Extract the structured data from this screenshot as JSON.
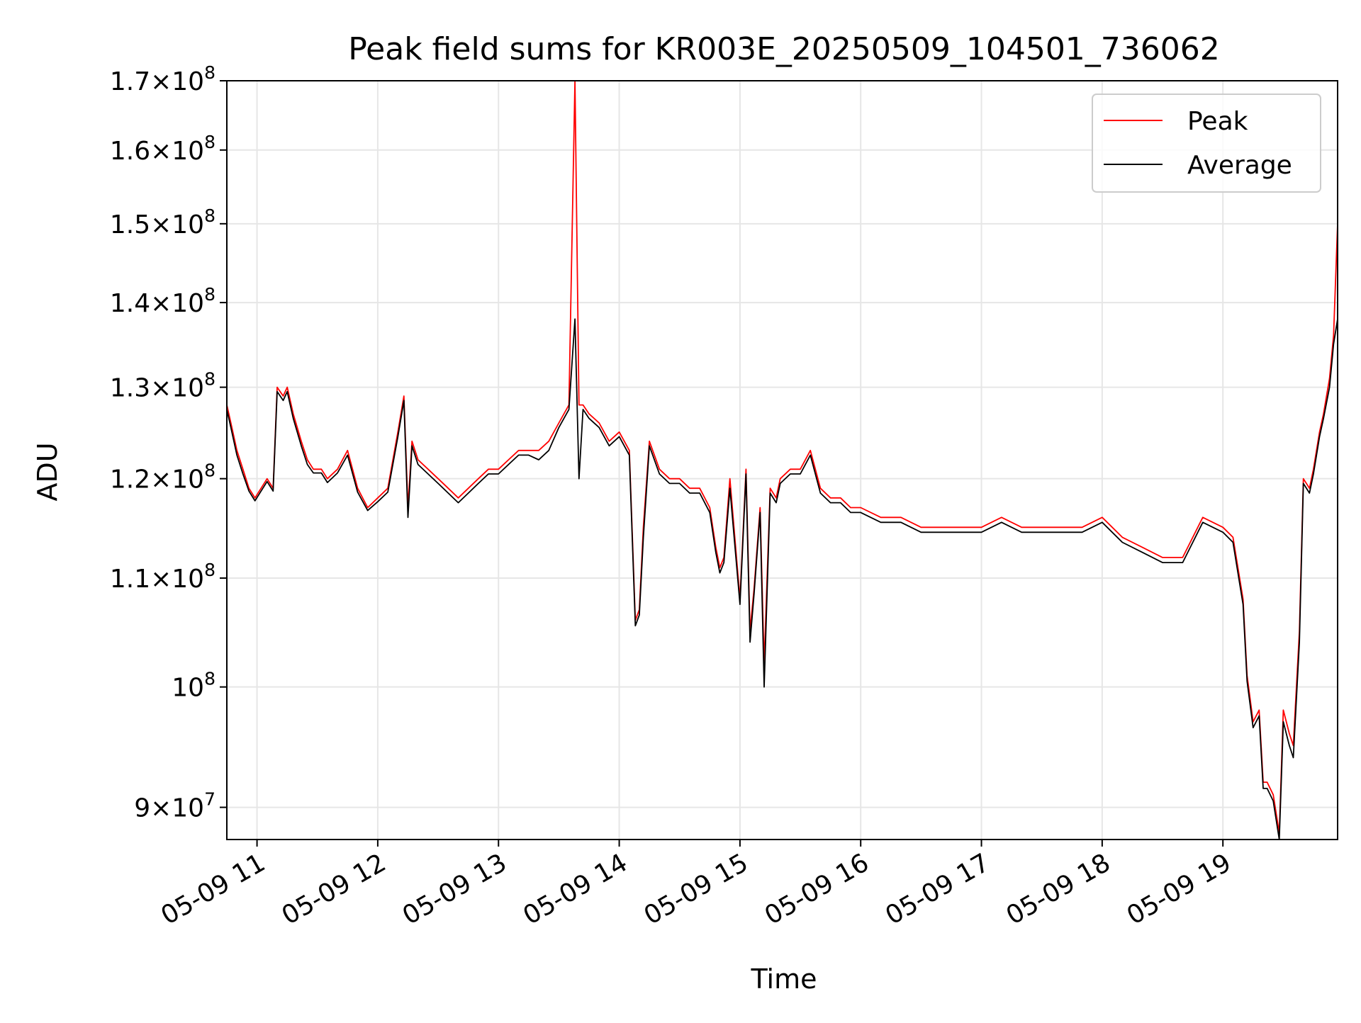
{
  "chart_data": {
    "type": "line",
    "title": "Peak field sums for KR003E_20250509_104501_736062",
    "xlabel": "Time",
    "ylabel": "ADU",
    "y_scale": "log",
    "x_date": "2025-05-09",
    "xlim": [
      "2025-05-09T10:45",
      "2025-05-09T19:57"
    ],
    "ylim": [
      87500000,
      170000000
    ],
    "grid": true,
    "legend_position": "upper right",
    "x_ticks": [
      {
        "t": "2025-05-09T11:00",
        "label": "05-09 11"
      },
      {
        "t": "2025-05-09T12:00",
        "label": "05-09 12"
      },
      {
        "t": "2025-05-09T13:00",
        "label": "05-09 13"
      },
      {
        "t": "2025-05-09T14:00",
        "label": "05-09 14"
      },
      {
        "t": "2025-05-09T15:00",
        "label": "05-09 15"
      },
      {
        "t": "2025-05-09T16:00",
        "label": "05-09 16"
      },
      {
        "t": "2025-05-09T17:00",
        "label": "05-09 17"
      },
      {
        "t": "2025-05-09T18:00",
        "label": "05-09 18"
      },
      {
        "t": "2025-05-09T19:00",
        "label": "05-09 19"
      }
    ],
    "y_ticks": [
      {
        "value": 90000000,
        "mant": "9",
        "exp": "7"
      },
      {
        "value": 100000000,
        "mant": "",
        "exp": "8"
      },
      {
        "value": 110000000,
        "mant": "1.1",
        "exp": "8"
      },
      {
        "value": 120000000,
        "mant": "1.2",
        "exp": "8"
      },
      {
        "value": 130000000,
        "mant": "1.3",
        "exp": "8"
      },
      {
        "value": 140000000,
        "mant": "1.4",
        "exp": "8"
      },
      {
        "value": 150000000,
        "mant": "1.5",
        "exp": "8"
      },
      {
        "value": 160000000,
        "mant": "1.6",
        "exp": "8"
      },
      {
        "value": 170000000,
        "mant": "1.7",
        "exp": "8"
      }
    ],
    "series": [
      {
        "name": "Peak",
        "color": "#ff0000",
        "x": [
          "10:45",
          "10:47",
          "10:50",
          "10:53",
          "10:56",
          "10:59",
          "11:02",
          "11:05",
          "11:08",
          "11:10",
          "11:13",
          "11:15",
          "11:18",
          "11:22",
          "11:25",
          "11:28",
          "11:32",
          "11:35",
          "11:40",
          "11:45",
          "11:50",
          "11:55",
          "12:00",
          "12:05",
          "12:10",
          "12:13",
          "12:15",
          "12:17",
          "12:20",
          "12:25",
          "12:30",
          "12:35",
          "12:40",
          "12:45",
          "12:50",
          "12:55",
          "13:00",
          "13:05",
          "13:10",
          "13:15",
          "13:20",
          "13:25",
          "13:30",
          "13:35",
          "13:38",
          "13:40",
          "13:42",
          "13:45",
          "13:50",
          "13:55",
          "14:00",
          "14:05",
          "14:08",
          "14:10",
          "14:12",
          "14:15",
          "14:20",
          "14:25",
          "14:30",
          "14:35",
          "14:40",
          "14:45",
          "14:48",
          "14:50",
          "14:52",
          "14:55",
          "15:00",
          "15:03",
          "15:05",
          "15:07",
          "15:10",
          "15:12",
          "15:15",
          "15:18",
          "15:20",
          "15:25",
          "15:30",
          "15:35",
          "15:40",
          "15:45",
          "15:50",
          "15:55",
          "16:00",
          "16:10",
          "16:20",
          "16:30",
          "16:40",
          "16:50",
          "17:00",
          "17:10",
          "17:20",
          "17:30",
          "17:40",
          "17:50",
          "18:00",
          "18:10",
          "18:20",
          "18:30",
          "18:40",
          "18:50",
          "19:00",
          "19:05",
          "19:10",
          "19:12",
          "19:15",
          "19:18",
          "19:20",
          "19:22",
          "19:25",
          "19:28",
          "19:30",
          "19:33",
          "19:35",
          "19:38",
          "19:40",
          "19:43",
          "19:45",
          "19:48",
          "19:50",
          "19:53",
          "19:55",
          "19:57"
        ],
        "values": [
          128000000,
          126000000,
          123000000,
          121000000,
          119000000,
          118000000,
          119000000,
          120000000,
          119000000,
          130000000,
          129000000,
          130000000,
          127000000,
          124000000,
          122000000,
          121000000,
          121000000,
          120000000,
          121000000,
          123000000,
          119000000,
          117000000,
          118000000,
          119000000,
          125000000,
          129000000,
          117000000,
          124000000,
          122000000,
          121000000,
          120000000,
          119000000,
          118000000,
          119000000,
          120000000,
          121000000,
          121000000,
          122000000,
          123000000,
          123000000,
          123000000,
          124000000,
          126000000,
          128000000,
          170000000,
          128000000,
          128000000,
          127000000,
          126000000,
          124000000,
          125000000,
          123000000,
          106000000,
          107000000,
          115000000,
          124000000,
          121000000,
          120000000,
          120000000,
          119000000,
          119000000,
          117000000,
          113000000,
          111000000,
          112000000,
          120000000,
          108000000,
          121000000,
          105000000,
          109000000,
          117000000,
          102000000,
          119000000,
          118000000,
          120000000,
          121000000,
          121000000,
          123000000,
          119000000,
          118000000,
          118000000,
          117000000,
          117000000,
          116000000,
          116000000,
          115000000,
          115000000,
          115000000,
          115000000,
          116000000,
          115000000,
          115000000,
          115000000,
          115000000,
          116000000,
          114000000,
          113000000,
          112000000,
          112000000,
          116000000,
          115000000,
          114000000,
          108000000,
          101000000,
          97000000,
          98000000,
          92000000,
          92000000,
          91000000,
          88000000,
          98000000,
          96000000,
          95000000,
          105000000,
          120000000,
          119000000,
          121000000,
          125000000,
          127000000,
          131000000,
          136000000,
          150000000
        ]
      },
      {
        "name": "Average",
        "color": "#000000",
        "x": [
          "10:45",
          "10:47",
          "10:50",
          "10:53",
          "10:56",
          "10:59",
          "11:02",
          "11:05",
          "11:08",
          "11:10",
          "11:13",
          "11:15",
          "11:18",
          "11:22",
          "11:25",
          "11:28",
          "11:32",
          "11:35",
          "11:40",
          "11:45",
          "11:50",
          "11:55",
          "12:00",
          "12:05",
          "12:10",
          "12:13",
          "12:15",
          "12:17",
          "12:20",
          "12:25",
          "12:30",
          "12:35",
          "12:40",
          "12:45",
          "12:50",
          "12:55",
          "13:00",
          "13:05",
          "13:10",
          "13:15",
          "13:20",
          "13:25",
          "13:30",
          "13:35",
          "13:38",
          "13:40",
          "13:42",
          "13:45",
          "13:50",
          "13:55",
          "14:00",
          "14:05",
          "14:08",
          "14:10",
          "14:12",
          "14:15",
          "14:20",
          "14:25",
          "14:30",
          "14:35",
          "14:40",
          "14:45",
          "14:48",
          "14:50",
          "14:52",
          "14:55",
          "15:00",
          "15:03",
          "15:05",
          "15:07",
          "15:10",
          "15:12",
          "15:15",
          "15:18",
          "15:20",
          "15:25",
          "15:30",
          "15:35",
          "15:40",
          "15:45",
          "15:50",
          "15:55",
          "16:00",
          "16:10",
          "16:20",
          "16:30",
          "16:40",
          "16:50",
          "17:00",
          "17:10",
          "17:20",
          "17:30",
          "17:40",
          "17:50",
          "18:00",
          "18:10",
          "18:20",
          "18:30",
          "18:40",
          "18:50",
          "19:00",
          "19:05",
          "19:10",
          "19:12",
          "19:15",
          "19:18",
          "19:20",
          "19:22",
          "19:25",
          "19:28",
          "19:30",
          "19:33",
          "19:35",
          "19:38",
          "19:40",
          "19:43",
          "19:45",
          "19:48",
          "19:50",
          "19:53",
          "19:55",
          "19:57"
        ],
        "values": [
          127500000,
          125500000,
          122500000,
          120500000,
          118700000,
          117700000,
          118700000,
          119700000,
          118700000,
          129500000,
          128500000,
          129500000,
          126500000,
          123500000,
          121500000,
          120600000,
          120600000,
          119600000,
          120600000,
          122500000,
          118600000,
          116700000,
          117600000,
          118600000,
          124500000,
          128500000,
          116000000,
          123500000,
          121500000,
          120500000,
          119500000,
          118500000,
          117500000,
          118500000,
          119500000,
          120500000,
          120500000,
          121500000,
          122500000,
          122500000,
          122000000,
          123000000,
          125500000,
          127500000,
          138000000,
          120000000,
          127500000,
          126500000,
          125500000,
          123500000,
          124500000,
          122500000,
          105500000,
          106500000,
          114000000,
          123500000,
          120500000,
          119500000,
          119500000,
          118500000,
          118500000,
          116500000,
          112500000,
          110500000,
          111500000,
          119000000,
          107500000,
          120500000,
          104000000,
          108500000,
          116500000,
          100000000,
          118500000,
          117500000,
          119500000,
          120500000,
          120500000,
          122500000,
          118500000,
          117500000,
          117500000,
          116500000,
          116500000,
          115500000,
          115500000,
          114500000,
          114500000,
          114500000,
          114500000,
          115500000,
          114500000,
          114500000,
          114500000,
          114500000,
          115500000,
          113500000,
          112500000,
          111500000,
          111500000,
          115500000,
          114500000,
          113500000,
          107500000,
          100500000,
          96500000,
          97500000,
          91500000,
          91500000,
          90500000,
          87500000,
          97000000,
          95000000,
          94000000,
          104000000,
          119500000,
          118500000,
          120500000,
          124500000,
          126500000,
          130000000,
          135000000,
          138000000
        ]
      }
    ]
  }
}
